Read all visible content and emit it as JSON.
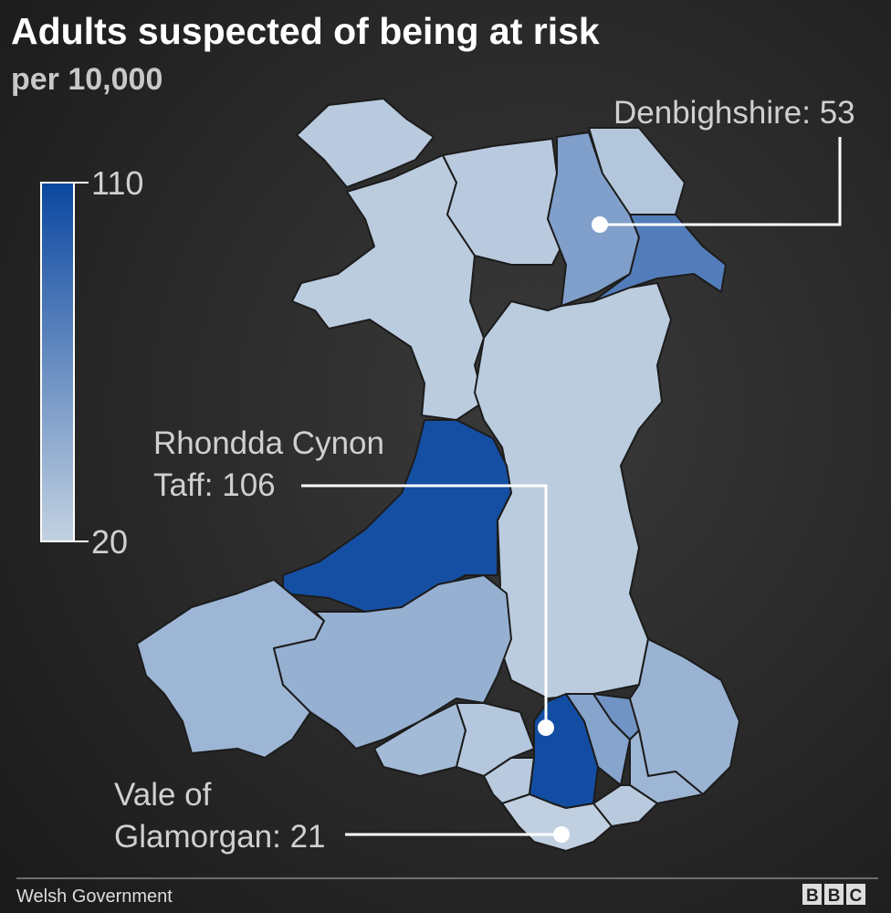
{
  "chart_data": {
    "type": "choropleth",
    "title": "Adults suspected of being at risk",
    "subtitle": "per 10,000",
    "colorbar": {
      "lim": [
        20,
        110
      ],
      "ticks": [
        110,
        20
      ],
      "colors": [
        "#c3d2e2",
        "#0b47a0"
      ]
    },
    "values": [
      25,
      24,
      25,
      53,
      28,
      75,
      24,
      105,
      38,
      42,
      35,
      27,
      25,
      106,
      50,
      60,
      40,
      38,
      25,
      21
    ],
    "annotations": [
      {
        "lines": [
          "Denbighshire: 53"
        ],
        "value": 53
      },
      {
        "lines": [
          "Rhondda Cynon",
          "Taff: 106"
        ],
        "value": 106
      },
      {
        "lines": [
          "Vale of",
          "Glamorgan: 21"
        ],
        "value": 21
      }
    ],
    "source": "Welsh Government",
    "logo": "BBC"
  }
}
